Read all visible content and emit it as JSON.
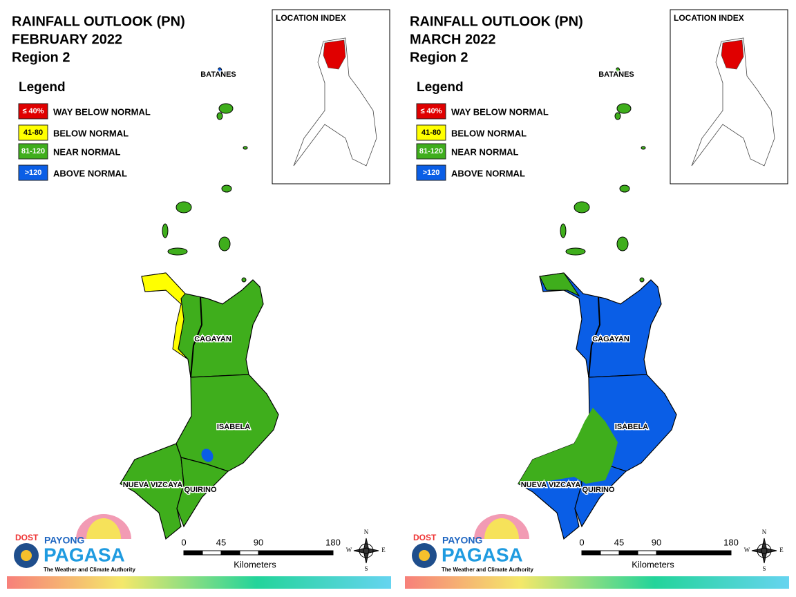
{
  "panels": [
    {
      "title": [
        "RAINFALL OUTLOOK (PN)",
        "FEBRUARY 2022",
        "Region 2"
      ],
      "legend": {
        "title": "Legend",
        "items": [
          {
            "swatch": "≤ 40%",
            "label": "WAY BELOW NORMAL",
            "color": "#e00000"
          },
          {
            "swatch": "41-80",
            "label": "BELOW NORMAL",
            "color": "#ffff00"
          },
          {
            "swatch": "81-120",
            "label": "NEAR NORMAL",
            "color": "#3fae1c"
          },
          {
            "swatch": ">120",
            "label": "ABOVE NORMAL",
            "color": "#0a5ee6"
          }
        ]
      },
      "location_index": "LOCATION INDEX",
      "places": [
        "BATANES",
        "CAGAYAN",
        "ISABELA",
        "NUEVA VIZCAYA",
        "QUIRINO"
      ],
      "scale": {
        "ticks": [
          0,
          45,
          90,
          180
        ],
        "unit": "Kilometers"
      },
      "compass": [
        "N",
        "E",
        "S",
        "W"
      ],
      "logo": {
        "agency": "DOST",
        "line1": "PAYONG",
        "line2": "PAGASA",
        "tagline": "The Weather and Climate Authority"
      }
    },
    {
      "title": [
        "RAINFALL OUTLOOK (PN)",
        "MARCH 2022",
        "Region 2"
      ],
      "legend": {
        "title": "Legend",
        "items": [
          {
            "swatch": "≤ 40%",
            "label": "WAY BELOW NORMAL",
            "color": "#e00000"
          },
          {
            "swatch": "41-80",
            "label": "BELOW NORMAL",
            "color": "#ffff00"
          },
          {
            "swatch": "81-120",
            "label": "NEAR NORMAL",
            "color": "#3fae1c"
          },
          {
            "swatch": ">120",
            "label": "ABOVE NORMAL",
            "color": "#0a5ee6"
          }
        ]
      },
      "location_index": "LOCATION INDEX",
      "places": [
        "BATANES",
        "CAGAYAN",
        "ISABELA",
        "NUEVA VIZCAYA",
        "QUIRINO"
      ],
      "scale": {
        "ticks": [
          0,
          45,
          90,
          180
        ],
        "unit": "Kilometers"
      },
      "compass": [
        "N",
        "E",
        "S",
        "W"
      ],
      "logo": {
        "agency": "DOST",
        "line1": "PAYONG",
        "line2": "PAGASA",
        "tagline": "The Weather and Climate Authority"
      }
    }
  ]
}
